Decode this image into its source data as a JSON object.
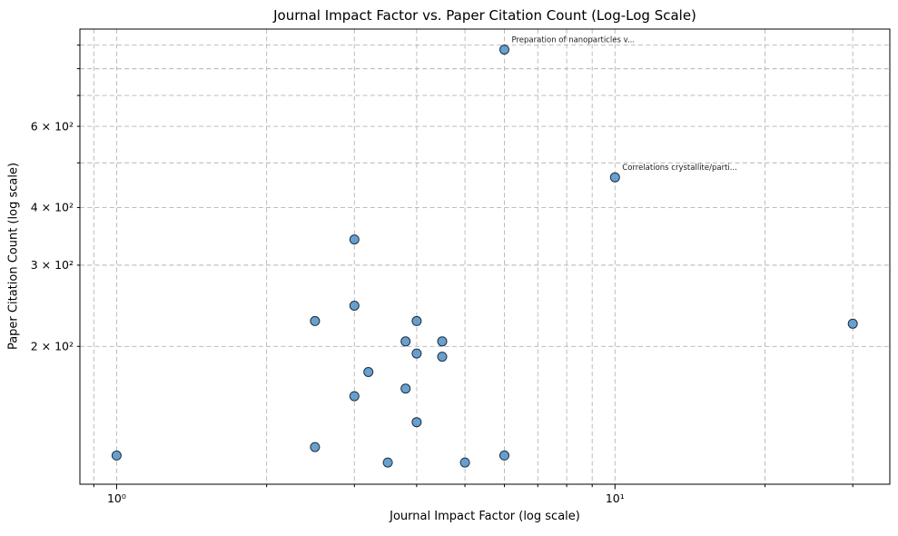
{
  "chart": {
    "title": "Journal Impact Factor vs. Paper Citation Count (Log-Log Scale)",
    "xlabel": "Journal Impact Factor (log scale)",
    "ylabel": "Paper Citation Count (log scale)"
  },
  "chart_data": {
    "type": "scatter",
    "title": "Journal Impact Factor vs. Paper Citation Count (Log-Log Scale)",
    "xlabel": "Journal Impact Factor (log scale)",
    "ylabel": "Paper Citation Count (log scale)",
    "x_scale": "log",
    "y_scale": "log",
    "xlim": [
      0.844,
      35.6
    ],
    "ylim": [
      100.5,
      975
    ],
    "grid": true,
    "grid_style": "dashed",
    "grid_color": "#b4b4b4",
    "x_ticks_major": [
      {
        "v": 1,
        "label": "10⁰"
      },
      {
        "v": 10,
        "label": "10¹"
      }
    ],
    "x_ticks_minor": [
      0.9,
      2,
      3,
      4,
      5,
      6,
      7,
      8,
      9,
      20,
      30
    ],
    "y_ticks": [
      {
        "v": 200,
        "label": "2 × 10²"
      },
      {
        "v": 300,
        "label": "3 × 10²"
      },
      {
        "v": 400,
        "label": "4 × 10²"
      },
      {
        "v": 500,
        "label": ""
      },
      {
        "v": 600,
        "label": "6 × 10²"
      },
      {
        "v": 700,
        "label": ""
      },
      {
        "v": 800,
        "label": ""
      },
      {
        "v": 900,
        "label": ""
      }
    ],
    "points": [
      {
        "impact_factor": 1.0,
        "citations": 116
      },
      {
        "impact_factor": 2.5,
        "citations": 227
      },
      {
        "impact_factor": 2.5,
        "citations": 121
      },
      {
        "impact_factor": 3.0,
        "citations": 341
      },
      {
        "impact_factor": 3.0,
        "citations": 245
      },
      {
        "impact_factor": 3.0,
        "citations": 156
      },
      {
        "impact_factor": 3.2,
        "citations": 176
      },
      {
        "impact_factor": 3.5,
        "citations": 112
      },
      {
        "impact_factor": 3.8,
        "citations": 205
      },
      {
        "impact_factor": 3.8,
        "citations": 162
      },
      {
        "impact_factor": 4.0,
        "citations": 227
      },
      {
        "impact_factor": 4.0,
        "citations": 193
      },
      {
        "impact_factor": 4.0,
        "citations": 137
      },
      {
        "impact_factor": 4.5,
        "citations": 205
      },
      {
        "impact_factor": 4.5,
        "citations": 190
      },
      {
        "impact_factor": 5.0,
        "citations": 112
      },
      {
        "impact_factor": 6.0,
        "citations": 880
      },
      {
        "impact_factor": 6.0,
        "citations": 116
      },
      {
        "impact_factor": 10.0,
        "citations": 465
      },
      {
        "impact_factor": 30.0,
        "citations": 224
      }
    ],
    "annotations": [
      {
        "x": 6.0,
        "y": 880,
        "text": "Preparation of nanoparticles v..."
      },
      {
        "x": 10.0,
        "y": 465,
        "text": "Correlations crystallite/parti..."
      }
    ],
    "marker": {
      "fill": "#4e91c8",
      "edge": "#1e2d3d",
      "radius": 5,
      "fill_opacity": 0.85
    }
  }
}
